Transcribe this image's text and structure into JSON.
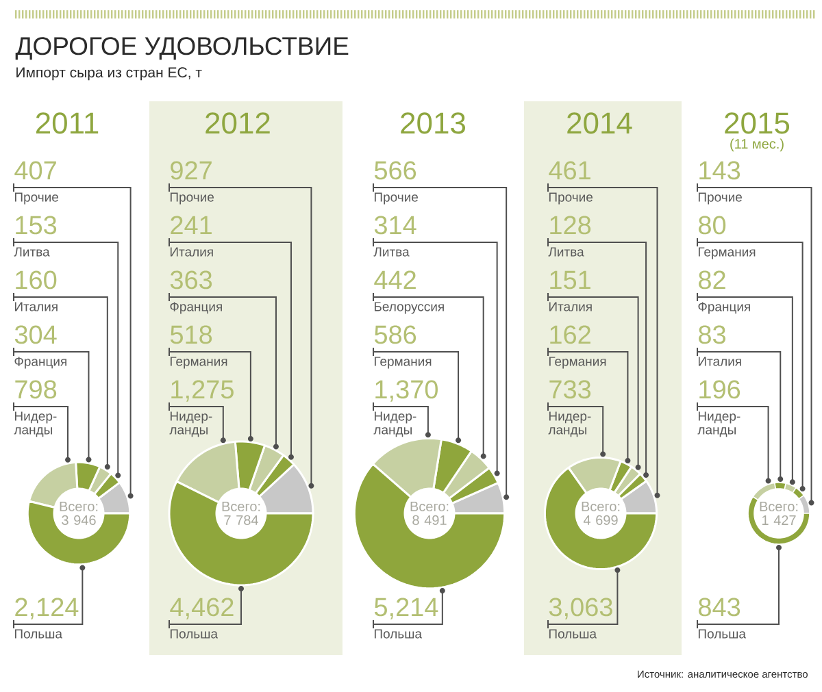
{
  "chart_data": [
    {
      "type": "other",
      "title": "ДОРОГОЕ УДОВОЛЬСТВИЕ",
      "subtitle": "Импорт сыра из стран ЕС, т"
    },
    {
      "type": "donut",
      "title": "2011",
      "categories": [
        "Прочие",
        "Литва",
        "Италия",
        "Франция",
        "Нидер-ланды",
        "Польша"
      ],
      "values": [
        407,
        153,
        160,
        304,
        798,
        2124
      ],
      "value_labels": [
        "407",
        "153",
        "160",
        "304",
        "798",
        "2,124"
      ],
      "colors": [
        "#c8c8c8",
        "#8fa63c",
        "#c6d0a2",
        "#8fa63c",
        "#c6d0a2",
        "#8fa63c"
      ],
      "annotations": [
        "Всего: 3 946"
      ]
    },
    {
      "type": "donut",
      "title": "2012",
      "categories": [
        "Прочие",
        "Италия",
        "Франция",
        "Германия",
        "Нидер-ланды",
        "Польша"
      ],
      "values": [
        927,
        241,
        363,
        518,
        1275,
        4462
      ],
      "value_labels": [
        "927",
        "241",
        "363",
        "518",
        "1,275",
        "4,462"
      ],
      "colors": [
        "#c8c8c8",
        "#8fa63c",
        "#c6d0a2",
        "#8fa63c",
        "#c6d0a2",
        "#8fa63c"
      ],
      "annotations": [
        "Всего: 7 784"
      ]
    },
    {
      "type": "donut",
      "title": "2013",
      "categories": [
        "Прочие",
        "Литва",
        "Белоруссия",
        "Германия",
        "Нидер-ланды",
        "Польша"
      ],
      "values": [
        566,
        314,
        442,
        586,
        1370,
        5214
      ],
      "value_labels": [
        "566",
        "314",
        "442",
        "586",
        "1,370",
        "5,214"
      ],
      "colors": [
        "#c8c8c8",
        "#8fa63c",
        "#c6d0a2",
        "#8fa63c",
        "#c6d0a2",
        "#8fa63c"
      ],
      "annotations": [
        "Всего: 8 491"
      ]
    },
    {
      "type": "donut",
      "title": "2014",
      "categories": [
        "Прочие",
        "Литва",
        "Италия",
        "Германия",
        "Нидер-ланды",
        "Польша"
      ],
      "values": [
        461,
        128,
        151,
        162,
        733,
        3063
      ],
      "value_labels": [
        "461",
        "128",
        "151",
        "162",
        "733",
        "3,063"
      ],
      "colors": [
        "#c8c8c8",
        "#8fa63c",
        "#c6d0a2",
        "#8fa63c",
        "#c6d0a2",
        "#8fa63c"
      ],
      "annotations": [
        "Всего: 4 699"
      ]
    },
    {
      "type": "donut",
      "title": "2015",
      "subtitle": "(11 мес.)",
      "categories": [
        "Прочие",
        "Германия",
        "Франция",
        "Италия",
        "Нидер-ланды",
        "Польша"
      ],
      "values": [
        143,
        80,
        82,
        83,
        196,
        843
      ],
      "value_labels": [
        "143",
        "80",
        "82",
        "83",
        "196",
        "843"
      ],
      "colors": [
        "#c8c8c8",
        "#8fa63c",
        "#c6d0a2",
        "#8fa63c",
        "#c6d0a2",
        "#8fa63c"
      ],
      "annotations": [
        "Всего: 1 427"
      ]
    },
    {
      "type": "other",
      "annotations": [
        "Источник: аналитическое агентство"
      ]
    }
  ]
}
